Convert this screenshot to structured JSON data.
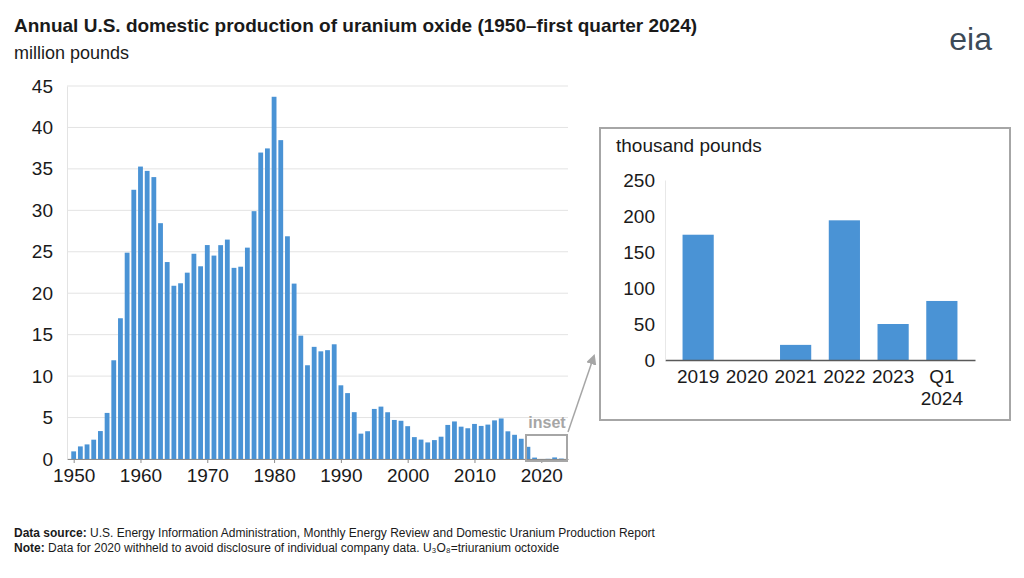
{
  "chart_data": [
    {
      "type": "bar",
      "title": "Annual U.S. domestic production of uranium oxide (1950–first quarter 2024)",
      "subtitle": "million pounds",
      "x": [
        1950,
        1951,
        1952,
        1953,
        1954,
        1955,
        1956,
        1957,
        1958,
        1959,
        1960,
        1961,
        1962,
        1963,
        1964,
        1965,
        1966,
        1967,
        1968,
        1969,
        1970,
        1971,
        1972,
        1973,
        1974,
        1975,
        1976,
        1977,
        1978,
        1979,
        1980,
        1981,
        1982,
        1983,
        1984,
        1985,
        1986,
        1987,
        1988,
        1989,
        1990,
        1991,
        1992,
        1993,
        1994,
        1995,
        1996,
        1997,
        1998,
        1999,
        2000,
        2001,
        2002,
        2003,
        2004,
        2005,
        2006,
        2007,
        2008,
        2009,
        2010,
        2011,
        2012,
        2013,
        2014,
        2015,
        2016,
        2017,
        2018,
        2019,
        2020,
        2021,
        2022,
        2023
      ],
      "values": [
        0.92,
        1.52,
        1.76,
        2.33,
        3.37,
        5.56,
        11.91,
        16.98,
        24.89,
        32.48,
        35.28,
        34.76,
        34.01,
        28.45,
        23.76,
        20.9,
        21.2,
        22.48,
        24.76,
        23.25,
        25.81,
        24.54,
        25.8,
        26.47,
        23.06,
        23.2,
        25.5,
        29.9,
        36.97,
        37.47,
        43.7,
        38.47,
        26.87,
        21.16,
        14.88,
        11.31,
        13.53,
        12.99,
        13.13,
        13.84,
        8.89,
        7.95,
        5.65,
        3.06,
        3.35,
        6.04,
        6.32,
        5.64,
        4.71,
        4.61,
        3.96,
        2.64,
        2.34,
        2.0,
        2.28,
        2.69,
        4.11,
        4.53,
        3.9,
        3.71,
        4.23,
        3.99,
        4.15,
        4.66,
        4.89,
        3.34,
        2.92,
        2.44,
        1.47,
        0.17,
        null,
        0.02,
        0.19,
        0.05
      ],
      "color": "#4a93d5",
      "xlim": [
        1949,
        2024
      ],
      "xticks": [
        1950,
        1960,
        1970,
        1980,
        1990,
        2000,
        2010,
        2020
      ],
      "ylim": [
        0,
        45
      ],
      "yticks": [
        0,
        5,
        10,
        15,
        20,
        25,
        30,
        35,
        40,
        45
      ],
      "grid": true,
      "annotations": [
        "inset"
      ],
      "source": "Data source: U.S. Energy Information Administration, Monthly Energy Review and Domestic Uranium Production Report",
      "note": "Note: Data for 2020 withheld to avoid disclosure of individual company data. U₃O₈=triuranium octoxide",
      "logo": "eia"
    },
    {
      "type": "bar",
      "subtitle": "thousand pounds",
      "categories": [
        "2019",
        "2020",
        "2021",
        "2022",
        "2023",
        "Q1 2024"
      ],
      "values": [
        174,
        null,
        21,
        194,
        50,
        82
      ],
      "color": "#4a93d5",
      "ylim": [
        0,
        250
      ],
      "yticks": [
        0,
        50,
        100,
        150,
        200,
        250
      ],
      "grid": false
    }
  ]
}
